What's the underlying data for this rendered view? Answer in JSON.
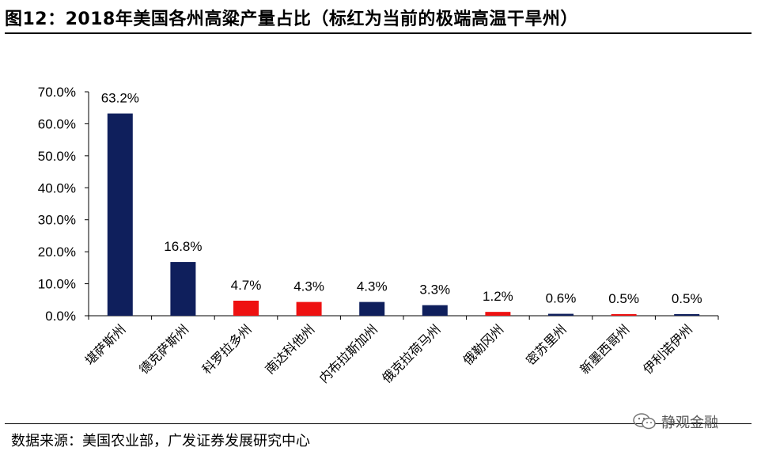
{
  "title": "图12：2018年美国各州高粱产量占比（标红为当前的极端高温干旱州）",
  "source": "数据来源：美国农业部，广发证券发展研究中心",
  "watermark": "静观金融",
  "colors": {
    "normal": "#0f1f5c",
    "highlight": "#ee1111"
  },
  "chart_data": {
    "type": "bar",
    "categories": [
      "堪萨斯州",
      "德克萨斯州",
      "科罗拉多州",
      "南达科他州",
      "内布拉斯加州",
      "俄克拉荷马州",
      "俄勒冈州",
      "密苏里州",
      "新墨西哥州",
      "伊利诺伊州"
    ],
    "values": [
      63.2,
      16.8,
      4.7,
      4.3,
      4.3,
      3.3,
      1.2,
      0.6,
      0.5,
      0.5
    ],
    "value_labels": [
      "63.2%",
      "16.8%",
      "4.7%",
      "4.3%",
      "4.3%",
      "3.3%",
      "1.2%",
      "0.6%",
      "0.5%",
      "0.5%"
    ],
    "highlight": [
      false,
      false,
      true,
      true,
      false,
      false,
      true,
      false,
      true,
      false
    ],
    "yticks": [
      0,
      10,
      20,
      30,
      40,
      50,
      60,
      70
    ],
    "ytick_labels": [
      "0.0%",
      "10.0%",
      "20.0%",
      "30.0%",
      "40.0%",
      "50.0%",
      "60.0%",
      "70.0%"
    ],
    "ylim": [
      0,
      70
    ],
    "grid": false
  }
}
